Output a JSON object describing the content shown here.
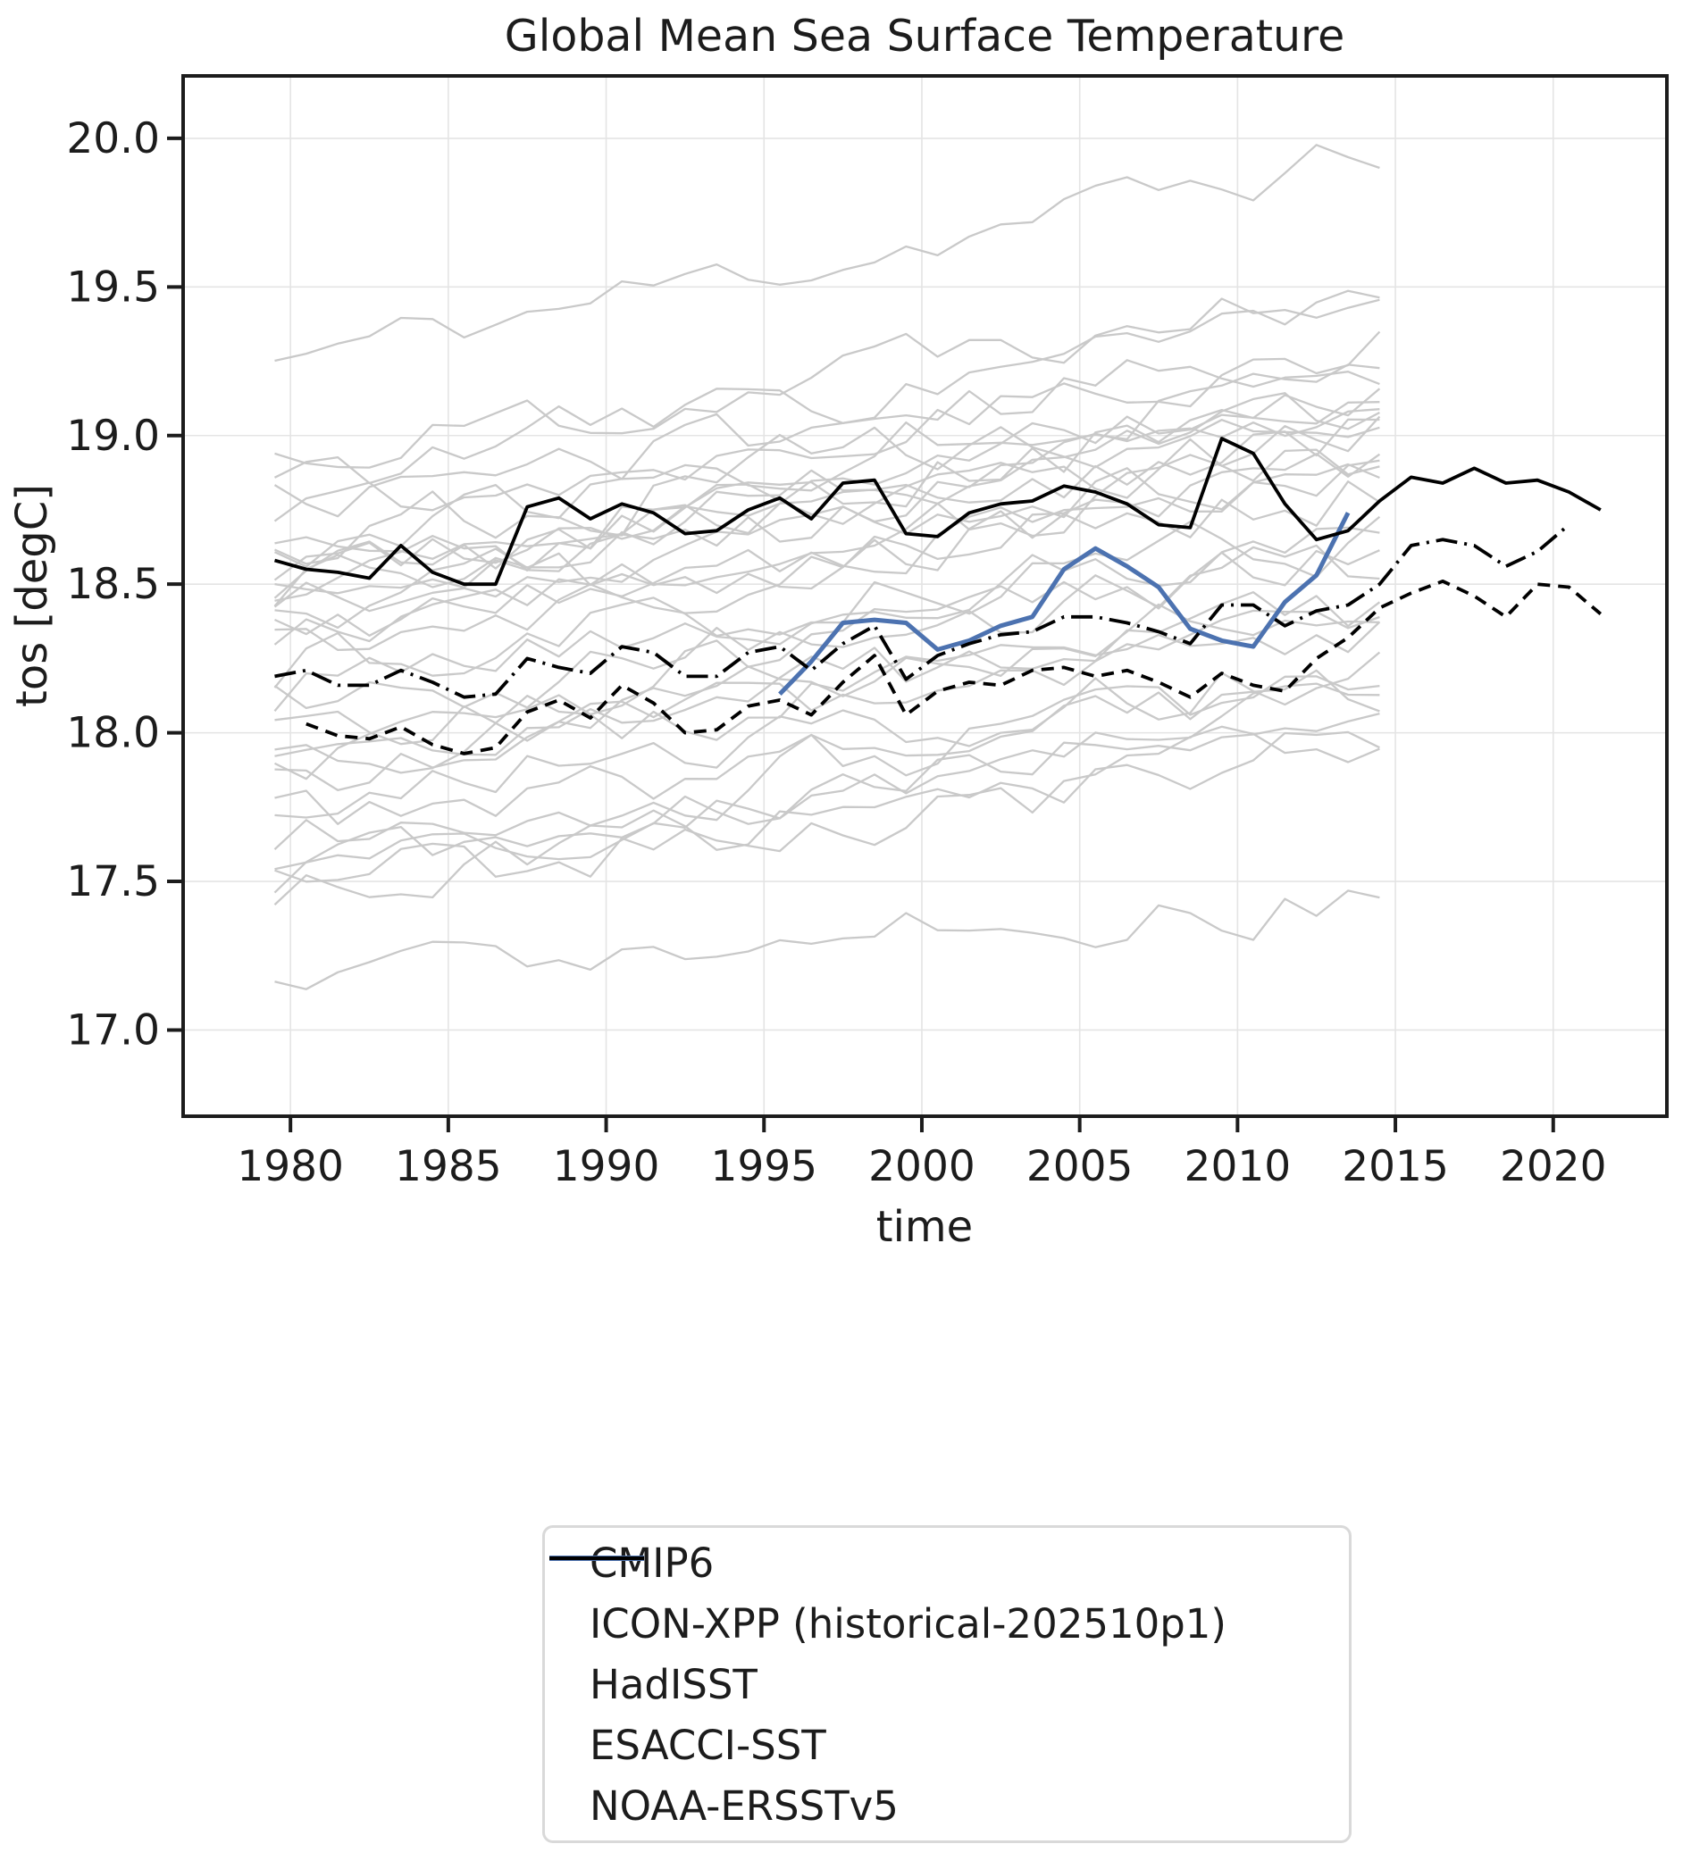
{
  "chart_data": {
    "type": "line",
    "title": "Global Mean Sea Surface Temperature",
    "xlabel": "time",
    "ylabel": "tos [degC]",
    "xlim": [
      1976.6,
      2023.6
    ],
    "ylim": [
      16.71,
      20.21
    ],
    "xticks": [
      1980,
      1985,
      1990,
      1995,
      2000,
      2005,
      2010,
      2015,
      2020
    ],
    "yticks": [
      17.0,
      17.5,
      18.0,
      18.5,
      19.0,
      19.5,
      20.0
    ],
    "grid": true,
    "point_offset": 0.5,
    "series": [
      {
        "name": "ICON-XPP (historical-202510p1)",
        "key": "icon_xpp",
        "style": "solid",
        "color": "#4C72B0",
        "width": 5,
        "start_year": 1995,
        "values": [
          18.13,
          18.24,
          18.37,
          18.38,
          18.37,
          18.28,
          18.31,
          18.36,
          18.39,
          18.55,
          18.62,
          18.56,
          18.49,
          18.35,
          18.31,
          18.29,
          18.44,
          18.53,
          18.74
        ]
      },
      {
        "name": "HadISST",
        "key": "hadisst",
        "style": "solid",
        "color": "#000000",
        "width": 3.8,
        "start_year": 1979,
        "values": [
          18.58,
          18.55,
          18.54,
          18.52,
          18.63,
          18.54,
          18.5,
          18.5,
          18.76,
          18.79,
          18.72,
          18.77,
          18.74,
          18.67,
          18.68,
          18.75,
          18.79,
          18.72,
          18.84,
          18.85,
          18.67,
          18.66,
          18.74,
          18.77,
          18.78,
          18.83,
          18.81,
          18.77,
          18.7,
          18.69,
          18.99,
          18.94,
          18.77,
          18.65,
          18.68,
          18.78,
          18.86,
          18.84,
          18.89,
          18.84,
          18.85,
          18.81,
          18.75
        ]
      },
      {
        "name": "ESACCI-SST",
        "key": "esacci",
        "style": "dashed",
        "color": "#000000",
        "width": 3.8,
        "start_year": 1980,
        "values": [
          18.03,
          17.99,
          17.98,
          18.02,
          17.96,
          17.93,
          17.95,
          18.07,
          18.11,
          18.05,
          18.16,
          18.1,
          18.0,
          18.01,
          18.09,
          18.11,
          18.06,
          18.17,
          18.26,
          18.06,
          18.14,
          18.17,
          18.16,
          18.21,
          18.22,
          18.19,
          18.21,
          18.17,
          18.12,
          18.2,
          18.16,
          18.14,
          18.25,
          18.32,
          18.42,
          18.47,
          18.51,
          18.46,
          18.39,
          18.5,
          18.49,
          18.4
        ]
      },
      {
        "name": "NOAA-ERSSTv5",
        "key": "noaa_ersstv5",
        "style": "dashdot",
        "color": "#000000",
        "width": 3.8,
        "start_year": 1979,
        "values": [
          18.19,
          18.21,
          18.16,
          18.16,
          18.21,
          18.17,
          18.12,
          18.13,
          18.25,
          18.22,
          18.2,
          18.29,
          18.27,
          18.19,
          18.19,
          18.27,
          18.29,
          18.21,
          18.3,
          18.36,
          18.18,
          18.26,
          18.3,
          18.33,
          18.34,
          18.39,
          18.39,
          18.37,
          18.34,
          18.3,
          18.43,
          18.43,
          18.36,
          18.41,
          18.43,
          18.5,
          18.63,
          18.65,
          18.63,
          18.56,
          18.61,
          18.7
        ]
      }
    ],
    "cmip6_ensemble": {
      "name": "CMIP6",
      "color": "#c9c9c9",
      "width": 2.3,
      "start_year": 1979,
      "end_year": 2014,
      "members": [
        {
          "start": 19.25,
          "trend": 0.7,
          "amp": 0.075,
          "seed": 11
        },
        {
          "start": 18.92,
          "trend": 0.62,
          "amp": 0.08,
          "seed": 22
        },
        {
          "start": 18.85,
          "trend": 0.55,
          "amp": 0.085,
          "seed": 33
        },
        {
          "start": 18.78,
          "trend": 0.5,
          "amp": 0.08,
          "seed": 44
        },
        {
          "start": 18.72,
          "trend": 0.6,
          "amp": 0.075,
          "seed": 55
        },
        {
          "start": 18.68,
          "trend": 0.45,
          "amp": 0.09,
          "seed": 66
        },
        {
          "start": 18.62,
          "trend": 0.65,
          "amp": 0.08,
          "seed": 77
        },
        {
          "start": 18.58,
          "trend": 0.52,
          "amp": 0.085,
          "seed": 88
        },
        {
          "start": 18.55,
          "trend": 0.58,
          "amp": 0.075,
          "seed": 99
        },
        {
          "start": 18.52,
          "trend": 0.48,
          "amp": 0.09,
          "seed": 110
        },
        {
          "start": 18.5,
          "trend": 0.62,
          "amp": 0.08,
          "seed": 121
        },
        {
          "start": 18.47,
          "trend": 0.55,
          "amp": 0.085,
          "seed": 132
        },
        {
          "start": 18.44,
          "trend": 0.5,
          "amp": 0.08,
          "seed": 143
        },
        {
          "start": 18.42,
          "trend": 0.66,
          "amp": 0.075,
          "seed": 154
        },
        {
          "start": 18.4,
          "trend": 0.44,
          "amp": 0.09,
          "seed": 165
        },
        {
          "start": 18.36,
          "trend": 0.58,
          "amp": 0.08,
          "seed": 176
        },
        {
          "start": 18.32,
          "trend": 0.52,
          "amp": 0.085,
          "seed": 187
        },
        {
          "start": 18.28,
          "trend": 0.62,
          "amp": 0.075,
          "seed": 198
        },
        {
          "start": 18.22,
          "trend": 0.46,
          "amp": 0.09,
          "seed": 209
        },
        {
          "start": 18.15,
          "trend": 0.56,
          "amp": 0.08,
          "seed": 220
        },
        {
          "start": 18.08,
          "trend": 0.5,
          "amp": 0.085,
          "seed": 231
        },
        {
          "start": 18.0,
          "trend": 0.6,
          "amp": 0.08,
          "seed": 242
        },
        {
          "start": 17.95,
          "trend": 0.44,
          "amp": 0.085,
          "seed": 253
        },
        {
          "start": 17.92,
          "trend": 0.54,
          "amp": 0.08,
          "seed": 264
        },
        {
          "start": 17.88,
          "trend": 0.48,
          "amp": 0.085,
          "seed": 275
        },
        {
          "start": 17.82,
          "trend": 0.58,
          "amp": 0.075,
          "seed": 286
        },
        {
          "start": 17.76,
          "trend": 0.5,
          "amp": 0.09,
          "seed": 297
        },
        {
          "start": 17.7,
          "trend": 0.42,
          "amp": 0.085,
          "seed": 308
        },
        {
          "start": 17.62,
          "trend": 0.55,
          "amp": 0.08,
          "seed": 319
        },
        {
          "start": 17.56,
          "trend": 0.48,
          "amp": 0.085,
          "seed": 330
        },
        {
          "start": 17.52,
          "trend": 0.6,
          "amp": 0.075,
          "seed": 341
        },
        {
          "start": 17.48,
          "trend": 0.45,
          "amp": 0.09,
          "seed": 352
        },
        {
          "start": 17.44,
          "trend": 0.52,
          "amp": 0.08,
          "seed": 363
        },
        {
          "start": 17.15,
          "trend": 0.3,
          "amp": 0.08,
          "seed": 374
        }
      ]
    }
  },
  "legend": {
    "entries": [
      {
        "label": "CMIP6",
        "color": "#c9c9c9",
        "dash": "",
        "width": 2.5
      },
      {
        "label": "ICON-XPP (historical-202510p1)",
        "color": "#4C72B0",
        "dash": "",
        "width": 6
      },
      {
        "label": "HadISST",
        "color": "#000000",
        "dash": "",
        "width": 4
      },
      {
        "label": "ESACCI-SST",
        "color": "#000000",
        "dash": "14 9",
        "width": 4
      },
      {
        "label": "NOAA-ERSSTv5",
        "color": "#000000",
        "dash": "24 8 3 8",
        "width": 4
      }
    ]
  },
  "colors": {
    "axis": "#1c1c1c",
    "grid": "#e4e4e4",
    "cmip6": "#c9c9c9",
    "icon_xpp": "#4C72B0",
    "observations": "#000000",
    "legend_border": "#d9d9d9",
    "background": "#ffffff"
  }
}
